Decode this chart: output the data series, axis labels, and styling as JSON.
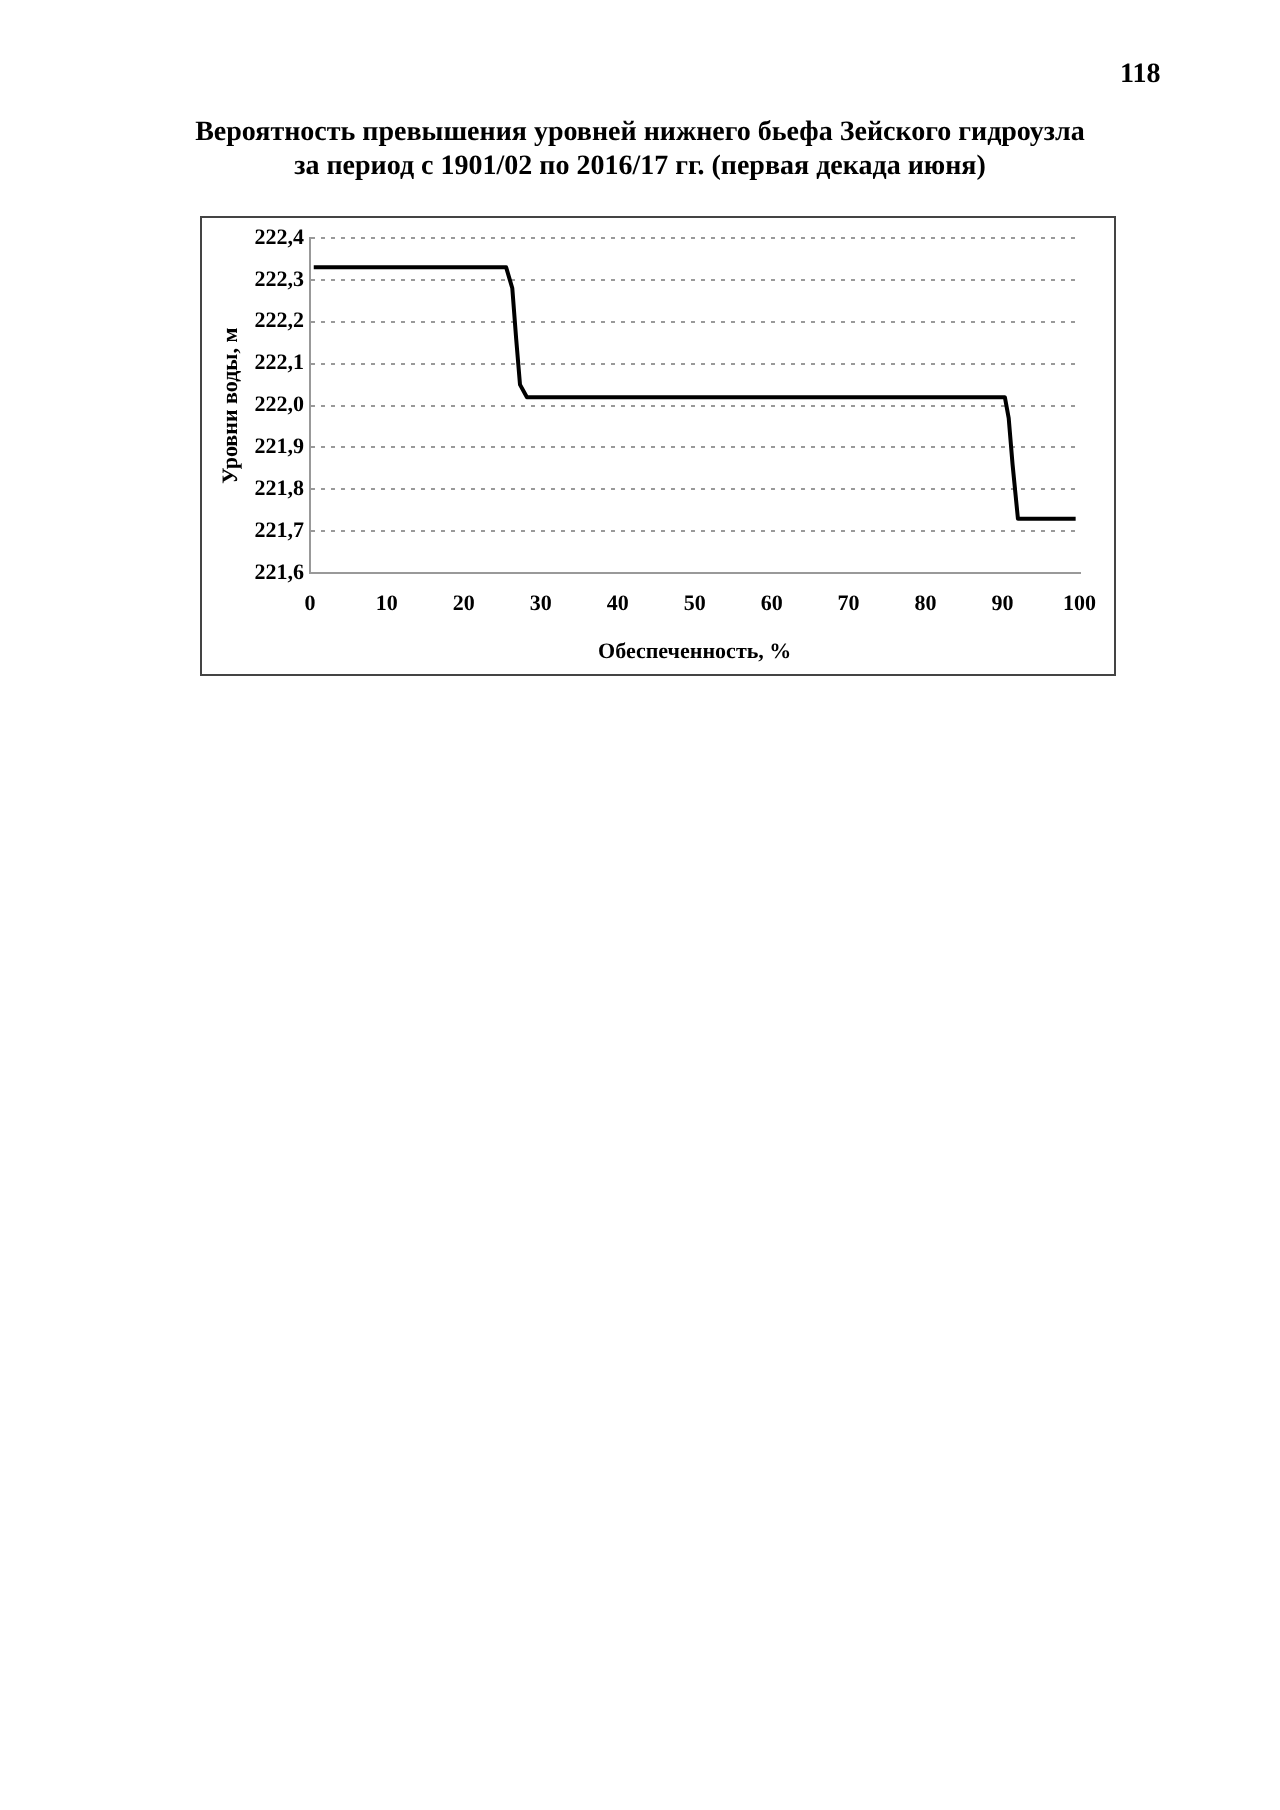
{
  "chart_data": {
    "type": "line",
    "title": "Вероятность превышения уровней нижнего бьефа Зейского гидроузла\nза период с 1901/02 по 2016/17 гг. (первая декада июня)",
    "xlabel": "Обеспеченность, %",
    "ylabel": "Уровни воды, м",
    "annotations": [
      "118"
    ],
    "x": [
      0.5,
      25.5,
      26.3,
      26.8,
      27.3,
      28.2,
      90.3,
      90.8,
      91.3,
      92.0,
      99.5
    ],
    "series": [
      {
        "color": "#000000",
        "values": [
          222.33,
          222.33,
          222.28,
          222.16,
          222.05,
          222.02,
          222.02,
          221.97,
          221.86,
          221.73,
          221.73
        ]
      }
    ],
    "xlim": [
      0,
      100
    ],
    "xticks": [
      0,
      10,
      20,
      30,
      40,
      50,
      60,
      70,
      80,
      90,
      100
    ],
    "ylim": [
      221.6,
      222.4
    ],
    "yticks": [
      {
        "value": 221.6,
        "label": "221,6"
      },
      {
        "value": 221.7,
        "label": "221,7"
      },
      {
        "value": 221.8,
        "label": "221,8"
      },
      {
        "value": 221.9,
        "label": "221,9"
      },
      {
        "value": 222.0,
        "label": "222,0"
      },
      {
        "value": 222.1,
        "label": "222,1"
      },
      {
        "value": 222.2,
        "label": "222,2"
      },
      {
        "value": 222.3,
        "label": "222,3"
      },
      {
        "value": 222.4,
        "label": "222,4"
      }
    ],
    "grid": "y",
    "legend": false,
    "marker": "none",
    "line_style": "solid"
  }
}
